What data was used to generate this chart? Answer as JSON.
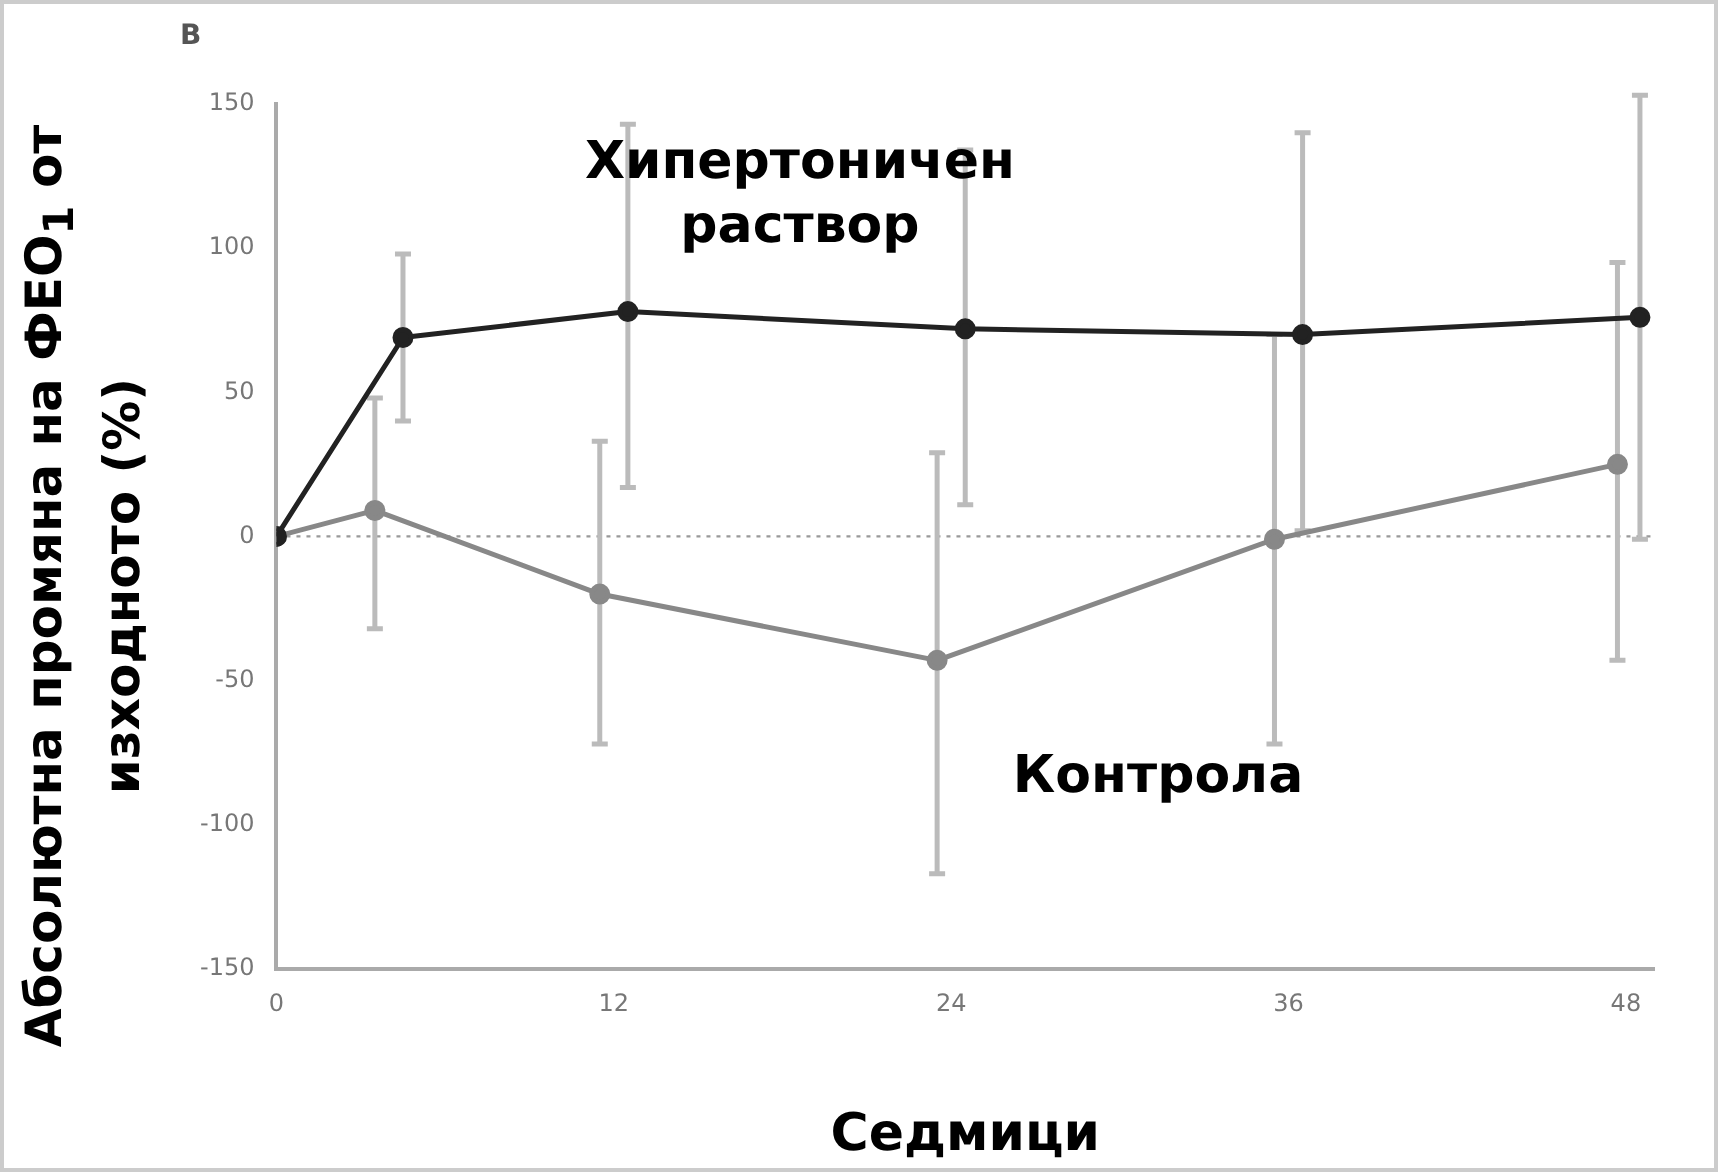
{
  "chart_data": {
    "type": "line",
    "xlabel": "Седмици",
    "ylabel": "Абсолютна промяна на ФЕО$_{1}$ от изходното (%)",
    "annotations": [
      "B"
    ],
    "xlim": [
      0,
      49
    ],
    "xticks": [
      0,
      12,
      24,
      36,
      48
    ],
    "ylim": [
      -150,
      150
    ],
    "yticks": [
      -150,
      -100,
      -50,
      0,
      50,
      100,
      150
    ],
    "grid": false,
    "legend": false,
    "marker": "circle",
    "line_style": "solid",
    "ref_lines": [
      {
        "axis": "y",
        "value": 0,
        "color": "#999999",
        "line_style": "dotted"
      }
    ],
    "series": [
      {
        "name": "Хипертоничен раствор",
        "color": "#222222",
        "x": [
          0,
          4.5,
          12.5,
          24.5,
          36.5,
          48.5
        ],
        "values": [
          0,
          69,
          78,
          72,
          70,
          76
        ],
        "errors": [
          null,
          [
            40,
            98
          ],
          [
            17,
            143
          ],
          [
            11,
            134
          ],
          [
            2,
            140
          ],
          [
            -1,
            153
          ]
        ]
      },
      {
        "name": "Контрола",
        "color": "#888888",
        "x": [
          0,
          3.5,
          11.5,
          23.5,
          35.5,
          47.7
        ],
        "values": [
          0,
          9,
          -20,
          -43,
          -1,
          25
        ],
        "errors": [
          null,
          [
            -32,
            48
          ],
          [
            -72,
            33
          ],
          [
            -117,
            29
          ],
          [
            -72,
            70
          ],
          [
            -43,
            95
          ]
        ]
      }
    ]
  }
}
